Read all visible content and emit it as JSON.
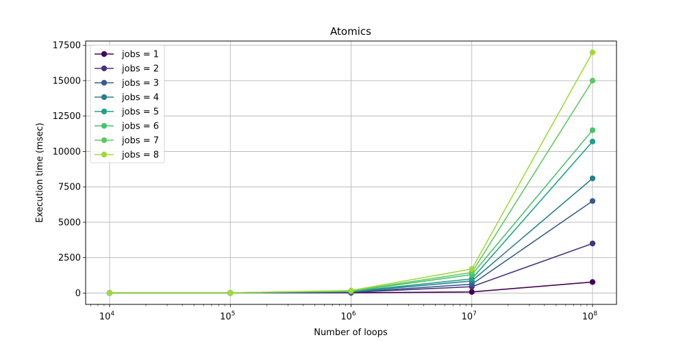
{
  "chart_data": {
    "type": "line",
    "title": "Atomics",
    "xlabel": "Number of loops",
    "ylabel": "Execution time (msec)",
    "x_scale": "log",
    "x": [
      10000,
      100000,
      1000000,
      10000000,
      100000000
    ],
    "x_ticks": [
      {
        "value": 10000,
        "base": "10",
        "exp": "4"
      },
      {
        "value": 100000,
        "base": "10",
        "exp": "5"
      },
      {
        "value": 1000000,
        "base": "10",
        "exp": "6"
      },
      {
        "value": 10000000,
        "base": "10",
        "exp": "7"
      },
      {
        "value": 100000000,
        "base": "10",
        "exp": "8"
      }
    ],
    "ylim": [
      -800,
      17800
    ],
    "y_ticks": [
      {
        "value": 0,
        "label": "0"
      },
      {
        "value": 2500,
        "label": "2500"
      },
      {
        "value": 5000,
        "label": "5000"
      },
      {
        "value": 7500,
        "label": "7500"
      },
      {
        "value": 10000,
        "label": "10000"
      },
      {
        "value": 12500,
        "label": "12500"
      },
      {
        "value": 15000,
        "label": "15000"
      },
      {
        "value": 17500,
        "label": "17500"
      }
    ],
    "grid": true,
    "legend_position": "upper-left",
    "series": [
      {
        "name": "jobs = 1",
        "color": "#440154",
        "values": [
          5,
          5,
          20,
          80,
          780
        ]
      },
      {
        "name": "jobs = 2",
        "color": "#46327e",
        "values": [
          8,
          8,
          50,
          450,
          3500
        ]
      },
      {
        "name": "jobs = 3",
        "color": "#365c8d",
        "values": [
          10,
          10,
          70,
          620,
          6500
        ]
      },
      {
        "name": "jobs = 4",
        "color": "#277f8e",
        "values": [
          12,
          12,
          90,
          850,
          8100
        ]
      },
      {
        "name": "jobs = 5",
        "color": "#1fa187",
        "values": [
          14,
          14,
          110,
          1000,
          10700
        ]
      },
      {
        "name": "jobs = 6",
        "color": "#4ac16d",
        "values": [
          16,
          16,
          130,
          1300,
          11500
        ]
      },
      {
        "name": "jobs = 7",
        "color": "#5ec962",
        "values": [
          18,
          18,
          150,
          1450,
          15000
        ]
      },
      {
        "name": "jobs = 8",
        "color": "#a0da39",
        "values": [
          20,
          20,
          180,
          1700,
          17000
        ]
      }
    ]
  }
}
